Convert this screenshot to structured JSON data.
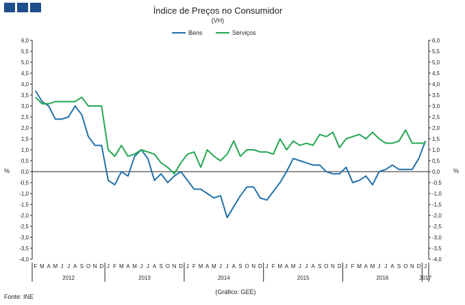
{
  "header": {
    "logo_icon": "publisher-logo-icon",
    "logo_color": "#1f4f8c"
  },
  "chart_data": {
    "type": "line",
    "title": "Índice de Preços no Consumidor",
    "subtitle": "(VH)",
    "ylabel_left": "%",
    "ylabel_right": "%",
    "ylim": [
      -4.0,
      6.0
    ],
    "yticks": [
      "6,0",
      "5,5",
      "5,0",
      "4,5",
      "4,0",
      "3,5",
      "3,0",
      "2,5",
      "2,0",
      "1,5",
      "1,0",
      "0,5",
      "0,0",
      "-0,5",
      "-1,0",
      "-1,5",
      "-2,0",
      "-2,5",
      "-3,0",
      "-3,5",
      "-4,0"
    ],
    "month_labels": [
      "F",
      "M",
      "A",
      "M",
      "J",
      "J",
      "A",
      "S",
      "O",
      "N",
      "D",
      "J",
      "F",
      "M",
      "A",
      "M",
      "J",
      "J",
      "A",
      "S",
      "O",
      "N",
      "D",
      "J",
      "F",
      "M",
      "A",
      "M",
      "J",
      "J",
      "A",
      "S",
      "O",
      "N",
      "D",
      "J",
      "F",
      "M",
      "A",
      "M",
      "J",
      "J",
      "A",
      "S",
      "O",
      "N",
      "D",
      "J",
      "F",
      "M",
      "A",
      "M",
      "J",
      "J",
      "A",
      "S",
      "O",
      "N",
      "D",
      "J"
    ],
    "years": [
      {
        "label": "2012",
        "start": 0,
        "end": 10
      },
      {
        "label": "2013",
        "start": 11,
        "end": 22
      },
      {
        "label": "2014",
        "start": 23,
        "end": 34
      },
      {
        "label": "2015",
        "start": 35,
        "end": 46
      },
      {
        "label": "2016",
        "start": 47,
        "end": 58
      },
      {
        "label": "2017",
        "start": 59,
        "end": 59
      }
    ],
    "series": [
      {
        "name": "Bens",
        "color": "#1f6fa8",
        "values": [
          3.7,
          3.2,
          3.0,
          2.4,
          2.4,
          2.5,
          3.0,
          2.6,
          1.6,
          1.2,
          1.2,
          -0.4,
          -0.6,
          0.0,
          -0.2,
          0.7,
          1.0,
          0.6,
          -0.4,
          -0.1,
          -0.5,
          -0.2,
          0.0,
          -0.4,
          -0.8,
          -0.8,
          -1.0,
          -1.2,
          -1.1,
          -2.1,
          -1.6,
          -1.1,
          -0.7,
          -0.7,
          -1.2,
          -1.3,
          -0.9,
          -0.5,
          0.0,
          0.6,
          0.5,
          0.4,
          0.3,
          0.3,
          0.0,
          -0.1,
          -0.1,
          0.2,
          -0.5,
          -0.4,
          -0.2,
          -0.6,
          0.0,
          0.1,
          0.3,
          0.1,
          0.1,
          0.1,
          0.6,
          1.4
        ]
      },
      {
        "name": "Serviços",
        "color": "#22a651",
        "values": [
          3.4,
          3.1,
          3.1,
          3.2,
          3.2,
          3.2,
          3.2,
          3.4,
          3.0,
          3.0,
          3.0,
          1.0,
          0.7,
          1.2,
          0.7,
          0.8,
          1.0,
          0.9,
          0.8,
          0.4,
          0.2,
          -0.1,
          0.4,
          0.8,
          0.9,
          0.2,
          1.0,
          0.7,
          0.5,
          0.8,
          1.4,
          0.7,
          1.0,
          1.0,
          0.9,
          0.9,
          0.8,
          1.5,
          1.0,
          1.4,
          1.2,
          1.3,
          1.2,
          1.7,
          1.6,
          1.8,
          1.1,
          1.5,
          1.6,
          1.7,
          1.5,
          1.8,
          1.5,
          1.3,
          1.3,
          1.4,
          1.9,
          1.3,
          1.3,
          1.3
        ]
      }
    ]
  },
  "footer": {
    "source": "Fonte: INE",
    "credit": "(Gráfico: GEE)"
  }
}
